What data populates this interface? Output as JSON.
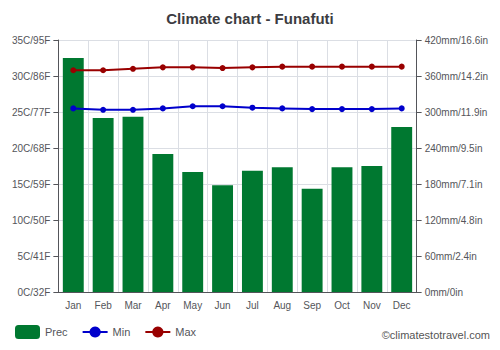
{
  "chart_data": {
    "type": "bar",
    "title": "Climate chart - Funafuti",
    "categories": [
      "Jan",
      "Feb",
      "Mar",
      "Apr",
      "May",
      "Jun",
      "Jul",
      "Aug",
      "Sep",
      "Oct",
      "Nov",
      "Dec"
    ],
    "series": [
      {
        "name": "Prec",
        "type": "bar",
        "axis": "y2",
        "color": "#007830",
        "values": [
          390,
          290,
          292,
          230,
          200,
          178,
          202,
          208,
          172,
          208,
          210,
          275
        ]
      },
      {
        "name": "Min",
        "type": "line",
        "color": "#0000CC",
        "marker": "circle",
        "values": [
          25.5,
          25.3,
          25.3,
          25.5,
          25.8,
          25.8,
          25.6,
          25.5,
          25.4,
          25.4,
          25.4,
          25.5
        ]
      },
      {
        "name": "Max",
        "type": "line",
        "color": "#990000",
        "marker": "circle",
        "values": [
          30.8,
          30.8,
          31.0,
          31.2,
          31.2,
          31.1,
          31.2,
          31.3,
          31.3,
          31.3,
          31.3,
          31.3
        ]
      }
    ],
    "ylim": [
      0,
      35
    ],
    "yticks": [
      {
        "value": 0,
        "label": "0C/32F"
      },
      {
        "value": 5,
        "label": "5C/41F"
      },
      {
        "value": 10,
        "label": "10C/50F"
      },
      {
        "value": 15,
        "label": "15C/59F"
      },
      {
        "value": 20,
        "label": "20C/68F"
      },
      {
        "value": 25,
        "label": "25C/77F"
      },
      {
        "value": 30,
        "label": "30C/86F"
      },
      {
        "value": 35,
        "label": "35C/95F"
      }
    ],
    "y2lim": [
      0,
      420
    ],
    "y2ticks": [
      {
        "value": 0,
        "label": "0mm/0in"
      },
      {
        "value": 60,
        "label": "60mm/2.4in"
      },
      {
        "value": 120,
        "label": "120mm/4.8in"
      },
      {
        "value": 180,
        "label": "180mm/7.1in"
      },
      {
        "value": 240,
        "label": "240mm/9.5in"
      },
      {
        "value": 300,
        "label": "300mm/11.9in"
      },
      {
        "value": 360,
        "label": "360mm/14.2in"
      },
      {
        "value": 420,
        "label": "420mm/16.6in"
      }
    ],
    "grid": true,
    "legend": "bottom",
    "annotations": [
      "©climatestotravel.com"
    ]
  }
}
